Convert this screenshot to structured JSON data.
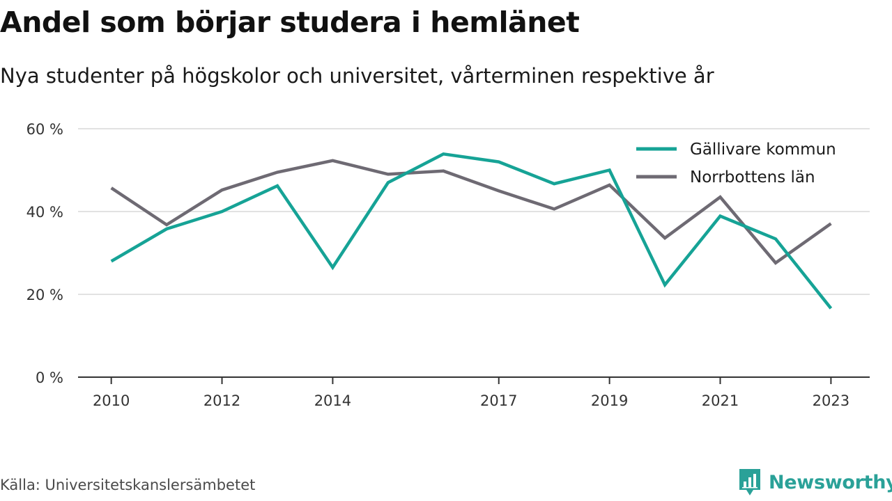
{
  "title": "Andel som börjar studera i hemlänet",
  "subtitle": "Nya studenter på högskolor och universitet, vårterminen respektive år",
  "source": "Källa: Universitetskanslersämbetet",
  "brand": {
    "name": "Newsworthy",
    "icon": "bar-chart-logo-icon",
    "color": "#2aa198"
  },
  "chart_data": {
    "type": "line",
    "title": "Andel som börjar studera i hemlänet",
    "subtitle": "Nya studenter på högskolor och universitet, vårterminen respektive år",
    "xlabel": "",
    "ylabel": "",
    "x": [
      2010,
      2011,
      2012,
      2013,
      2014,
      2015,
      2016,
      2017,
      2018,
      2019,
      2020,
      2021,
      2022,
      2023
    ],
    "x_tick_values": [
      2010,
      2012,
      2014,
      2017,
      2019,
      2021,
      2023
    ],
    "x_tick_labels": [
      "2010",
      "2012",
      "2014",
      "2017",
      "2019",
      "2021",
      "2023"
    ],
    "xlim": [
      2009.4,
      2023.7
    ],
    "ylim": [
      0,
      60
    ],
    "y_ticks": [
      0,
      20,
      40,
      60
    ],
    "y_tick_labels": [
      "0 %",
      "20 %",
      "40 %",
      "60 %"
    ],
    "grid": true,
    "legend_position": "top-right",
    "series": [
      {
        "name": "Gällivare kommun",
        "color": "#16a396",
        "values": [
          28,
          35.8,
          40,
          46.2,
          26.5,
          47,
          53.9,
          52,
          46.7,
          50,
          22.3,
          38.9,
          33.4,
          16.6
        ]
      },
      {
        "name": "Norrbottens län",
        "color": "#6e6a73",
        "values": [
          45.7,
          36.8,
          45.2,
          49.5,
          52.3,
          49,
          49.8,
          45,
          40.6,
          46.4,
          33.6,
          43.5,
          27.6,
          37.1
        ]
      }
    ]
  }
}
